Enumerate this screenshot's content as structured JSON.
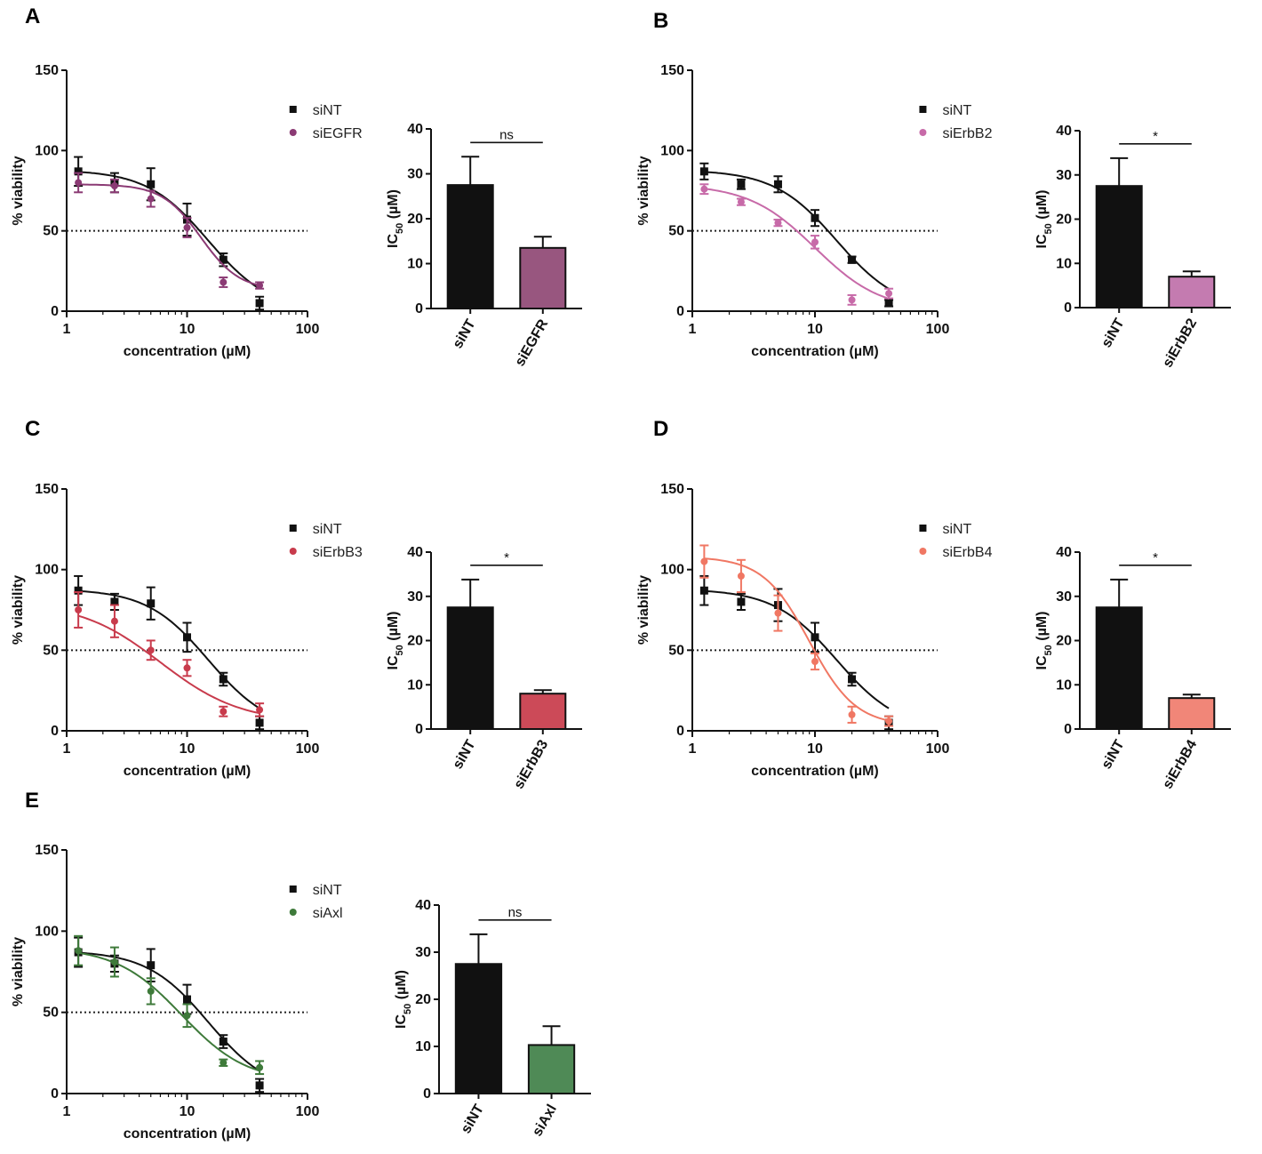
{
  "chart_data": [
    {
      "panel": "A",
      "line": {
        "type": "scatter",
        "xscale": "log",
        "xlabel": "concentration (µM)",
        "ylabel": "% viability",
        "xlim": [
          1,
          100
        ],
        "ylim": [
          0,
          150
        ],
        "xticks": [
          "1",
          "10",
          "100"
        ],
        "yticks": [
          "0",
          "50",
          "100",
          "150"
        ],
        "reference_line": 50,
        "legend_position": "top-right",
        "x": [
          1.25,
          2.5,
          5,
          10,
          20,
          40
        ],
        "series": [
          {
            "name": "siNT",
            "color": "#111111",
            "marker": "square",
            "values": [
              87,
              80,
              79,
              57,
              32,
              5
            ],
            "errors": [
              9,
              6,
              10,
              10,
              4,
              4
            ],
            "fit": {
              "top": 88,
              "bottom": 0,
              "ic50": 15,
              "hill": 1.7
            }
          },
          {
            "name": "siEGFR",
            "color": "#8b3a74",
            "marker": "circle",
            "values": [
              80,
              78,
              70,
              52,
              18,
              16
            ],
            "errors": [
              6,
              4,
              5,
              6,
              3,
              2
            ],
            "fit": {
              "top": 79,
              "bottom": 13,
              "ic50": 13,
              "hill": 2.7
            }
          }
        ]
      },
      "bar": {
        "type": "bar",
        "ylabel_main": "IC",
        "ylabel_sub": "50",
        "ylabel_unit": " (µM)",
        "ylim": [
          0,
          40
        ],
        "yticks": [
          "0",
          "10",
          "20",
          "30",
          "40"
        ],
        "categories": [
          "siNT",
          "siEGFR"
        ],
        "values": [
          27.5,
          13.5
        ],
        "errors": [
          6.3,
          2.5
        ],
        "colors": [
          "#111111",
          "#98567f"
        ],
        "significance": "ns"
      }
    },
    {
      "panel": "B",
      "line": {
        "type": "scatter",
        "xscale": "log",
        "xlabel": "concentration (µM)",
        "ylabel": "% viability",
        "xlim": [
          1,
          100
        ],
        "ylim": [
          0,
          150
        ],
        "xticks": [
          "1",
          "10",
          "100"
        ],
        "yticks": [
          "0",
          "50",
          "100",
          "150"
        ],
        "reference_line": 50,
        "legend_position": "top-right",
        "x": [
          1.25,
          2.5,
          5,
          10,
          20,
          40
        ],
        "series": [
          {
            "name": "siNT",
            "color": "#111111",
            "marker": "square",
            "values": [
              87,
              79,
              79,
              58,
              32,
              5
            ],
            "errors": [
              5,
              3,
              5,
              5,
              2,
              2
            ],
            "fit": {
              "top": 88,
              "bottom": 0,
              "ic50": 15,
              "hill": 1.7
            }
          },
          {
            "name": "siErbB2",
            "color": "#c76aa8",
            "marker": "circle",
            "values": [
              76,
              68,
              55,
              43,
              7,
              11
            ],
            "errors": [
              3,
              2,
              2,
              4,
              3,
              3
            ],
            "fit": {
              "top": 79,
              "bottom": 0,
              "ic50": 10,
              "hill": 1.6
            }
          }
        ]
      },
      "bar": {
        "type": "bar",
        "ylabel_main": "IC",
        "ylabel_sub": "50",
        "ylabel_unit": " (µM)",
        "ylim": [
          0,
          40
        ],
        "yticks": [
          "0",
          "10",
          "20",
          "30",
          "40"
        ],
        "categories": [
          "siNT",
          "siErbB2"
        ],
        "values": [
          27.5,
          7
        ],
        "errors": [
          6.3,
          1.2
        ],
        "colors": [
          "#111111",
          "#c47bb0"
        ],
        "significance": "*"
      }
    },
    {
      "panel": "C",
      "line": {
        "type": "scatter",
        "xscale": "log",
        "xlabel": "concentration (µM)",
        "ylabel": "% viability",
        "xlim": [
          1,
          100
        ],
        "ylim": [
          0,
          150
        ],
        "xticks": [
          "1",
          "10",
          "100"
        ],
        "yticks": [
          "0",
          "50",
          "100",
          "150"
        ],
        "reference_line": 50,
        "legend_position": "top-right",
        "x": [
          1.25,
          2.5,
          5,
          10,
          20,
          40
        ],
        "series": [
          {
            "name": "siNT",
            "color": "#111111",
            "marker": "square",
            "values": [
              87,
              80,
              79,
              58,
              32,
              5
            ],
            "errors": [
              9,
              5,
              10,
              9,
              4,
              4
            ],
            "fit": {
              "top": 88,
              "bottom": 0,
              "ic50": 15,
              "hill": 1.7
            }
          },
          {
            "name": "siErbB3",
            "color": "#c83b4c",
            "marker": "circle",
            "values": [
              75,
              68,
              50,
              39,
              12,
              13
            ],
            "errors": [
              11,
              10,
              6,
              5,
              3,
              4
            ],
            "fit": {
              "top": 80,
              "bottom": 5,
              "ic50": 6,
              "hill": 1.3
            }
          }
        ]
      },
      "bar": {
        "type": "bar",
        "ylabel_main": "IC",
        "ylabel_sub": "50",
        "ylabel_unit": " (µM)",
        "ylim": [
          0,
          40
        ],
        "yticks": [
          "0",
          "10",
          "20",
          "30",
          "40"
        ],
        "categories": [
          "siNT",
          "siErbB3"
        ],
        "values": [
          27.5,
          8
        ],
        "errors": [
          6.3,
          0.8
        ],
        "colors": [
          "#111111",
          "#cc4a58"
        ],
        "significance": "*"
      }
    },
    {
      "panel": "D",
      "line": {
        "type": "scatter",
        "xscale": "log",
        "xlabel": "concentration (µM)",
        "ylabel": "% viability",
        "xlim": [
          1,
          100
        ],
        "ylim": [
          0,
          150
        ],
        "xticks": [
          "1",
          "10",
          "100"
        ],
        "yticks": [
          "0",
          "50",
          "100",
          "150"
        ],
        "reference_line": 50,
        "legend_position": "top-right",
        "x": [
          1.25,
          2.5,
          5,
          10,
          20,
          40
        ],
        "series": [
          {
            "name": "siNT",
            "color": "#111111",
            "marker": "square",
            "values": [
              87,
              80,
              78,
              58,
              32,
              5
            ],
            "errors": [
              9,
              5,
              10,
              9,
              4,
              4
            ],
            "fit": {
              "top": 88,
              "bottom": 0,
              "ic50": 15,
              "hill": 1.7
            }
          },
          {
            "name": "siErbB4",
            "color": "#f07763",
            "marker": "circle",
            "values": [
              105,
              96,
              73,
              43,
              10,
              6
            ],
            "errors": [
              10,
              10,
              11,
              5,
              5,
              3
            ],
            "fit": {
              "top": 108,
              "bottom": 3,
              "ic50": 9,
              "hill": 2.3
            }
          }
        ]
      },
      "bar": {
        "type": "bar",
        "ylabel_main": "IC",
        "ylabel_sub": "50",
        "ylabel_unit": " (µM)",
        "ylim": [
          0,
          40
        ],
        "yticks": [
          "0",
          "10",
          "20",
          "30",
          "40"
        ],
        "categories": [
          "siNT",
          "siErbB4"
        ],
        "values": [
          27.5,
          7
        ],
        "errors": [
          6.3,
          0.8
        ],
        "colors": [
          "#111111",
          "#f18678"
        ],
        "significance": "*"
      }
    },
    {
      "panel": "E",
      "line": {
        "type": "scatter",
        "xscale": "log",
        "xlabel": "concentration (µM)",
        "ylabel": "% viability",
        "xlim": [
          1,
          100
        ],
        "ylim": [
          0,
          150
        ],
        "xticks": [
          "1",
          "10",
          "100"
        ],
        "yticks": [
          "0",
          "50",
          "100",
          "150"
        ],
        "reference_line": 50,
        "legend_position": "top-right",
        "x": [
          1.25,
          2.5,
          5,
          10,
          20,
          40
        ],
        "series": [
          {
            "name": "siNT",
            "color": "#111111",
            "marker": "square",
            "values": [
              87,
              80,
              79,
              58,
              32,
              5
            ],
            "errors": [
              9,
              5,
              10,
              9,
              4,
              4
            ],
            "fit": {
              "top": 88,
              "bottom": 0,
              "ic50": 15,
              "hill": 1.7
            }
          },
          {
            "name": "siAxl",
            "color": "#3e7a3a",
            "marker": "circle",
            "values": [
              88,
              81,
              63,
              48,
              19,
              16
            ],
            "errors": [
              9,
              9,
              8,
              7,
              2,
              4
            ],
            "fit": {
              "top": 90,
              "bottom": 7,
              "ic50": 9,
              "hill": 1.6
            }
          }
        ]
      },
      "bar": {
        "type": "bar",
        "ylabel_main": "IC",
        "ylabel_sub": "50",
        "ylabel_unit": " (µM)",
        "ylim": [
          0,
          40
        ],
        "yticks": [
          "0",
          "10",
          "20",
          "30",
          "40"
        ],
        "categories": [
          "siNT",
          "siAxl"
        ],
        "values": [
          27.5,
          10.3
        ],
        "errors": [
          6.3,
          4
        ],
        "colors": [
          "#111111",
          "#4f8a56"
        ],
        "significance": "ns"
      }
    }
  ]
}
